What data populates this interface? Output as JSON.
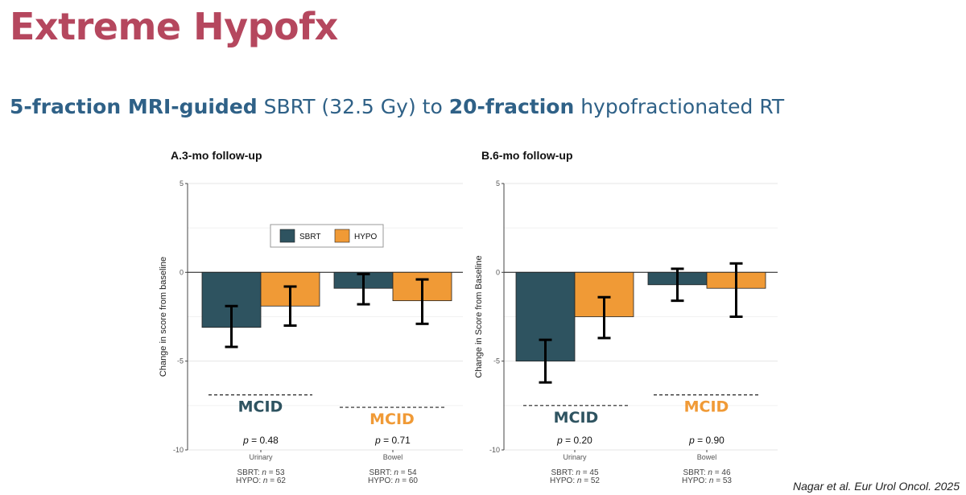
{
  "slide": {
    "title": "Extreme Hypofx",
    "subtitle_parts": [
      {
        "text": "5-fraction MRI-guided",
        "bold": true
      },
      {
        "text": " SBRT (32.5 Gy) to ",
        "bold": false
      },
      {
        "text": "20-fraction",
        "bold": true
      },
      {
        "text": " hypofractionated RT",
        "bold": false
      }
    ],
    "citation": "Nagar et al. Eur Urol Oncol. 2025"
  },
  "colors": {
    "title": "#b5475e",
    "subtitle": "#2f6187",
    "sbrt": "#2e5360",
    "hypo": "#f09a36",
    "mcid_sbrt": "#2e5360",
    "mcid_hypo": "#f09a36"
  },
  "chart_data": [
    {
      "type": "bar",
      "title": "A.3-mo follow-up",
      "ylabel": "Change in score from baseline",
      "ylim": [
        -10,
        5
      ],
      "yticks": [
        5,
        0,
        -5,
        -10
      ],
      "yticklabels": [
        "5",
        "0",
        "-5",
        "-10"
      ],
      "grid": true,
      "legend": {
        "placement": "top-center",
        "entries": [
          "SBRT",
          "HYPO"
        ]
      },
      "categories": [
        "Urinary",
        "Bowel"
      ],
      "series": [
        {
          "name": "SBRT",
          "values": [
            -3.1,
            -0.9
          ],
          "err_low": [
            -4.2,
            -1.8
          ],
          "err_high": [
            -1.9,
            -0.1
          ]
        },
        {
          "name": "HYPO",
          "values": [
            -1.9,
            -1.6
          ],
          "err_low": [
            -3.0,
            -2.9
          ],
          "err_high": [
            -0.8,
            -0.4
          ]
        }
      ],
      "p_values": [
        "p = 0.48",
        "p = 0.71"
      ],
      "n_labels": [
        [
          "SBRT: n = 53",
          "HYPO: n = 62"
        ],
        [
          "SBRT: n = 54",
          "HYPO: n = 60"
        ]
      ],
      "mcid": [
        {
          "label": "MCID",
          "group": "SBRT",
          "y": -6.9
        },
        {
          "label": "MCID",
          "group": "HYPO",
          "y": -7.6
        }
      ]
    },
    {
      "type": "bar",
      "title": "B.6-mo follow-up",
      "ylabel": "Change in Score from Baseline",
      "ylim": [
        -10,
        5
      ],
      "yticks": [
        5,
        0,
        -5,
        -10
      ],
      "yticklabels": [
        "5",
        "0",
        "-5",
        "-10"
      ],
      "grid": true,
      "legend": null,
      "categories": [
        "Urinary",
        "Bowel"
      ],
      "series": [
        {
          "name": "SBRT",
          "values": [
            -5.0,
            -0.7
          ],
          "err_low": [
            -6.2,
            -1.6
          ],
          "err_high": [
            -3.8,
            0.2
          ]
        },
        {
          "name": "HYPO",
          "values": [
            -2.5,
            -0.9
          ],
          "err_low": [
            -3.7,
            -2.5
          ],
          "err_high": [
            -1.4,
            0.5
          ]
        }
      ],
      "p_values": [
        "p = 0.20",
        "p = 0.90"
      ],
      "n_labels": [
        [
          "SBRT: n = 45",
          "HYPO: n = 52"
        ],
        [
          "SBRT: n = 46",
          "HYPO: n = 53"
        ]
      ],
      "mcid": [
        {
          "label": "MCID",
          "group": "SBRT",
          "y": -7.5
        },
        {
          "label": "MCID",
          "group": "HYPO",
          "y": -6.9
        }
      ]
    }
  ]
}
